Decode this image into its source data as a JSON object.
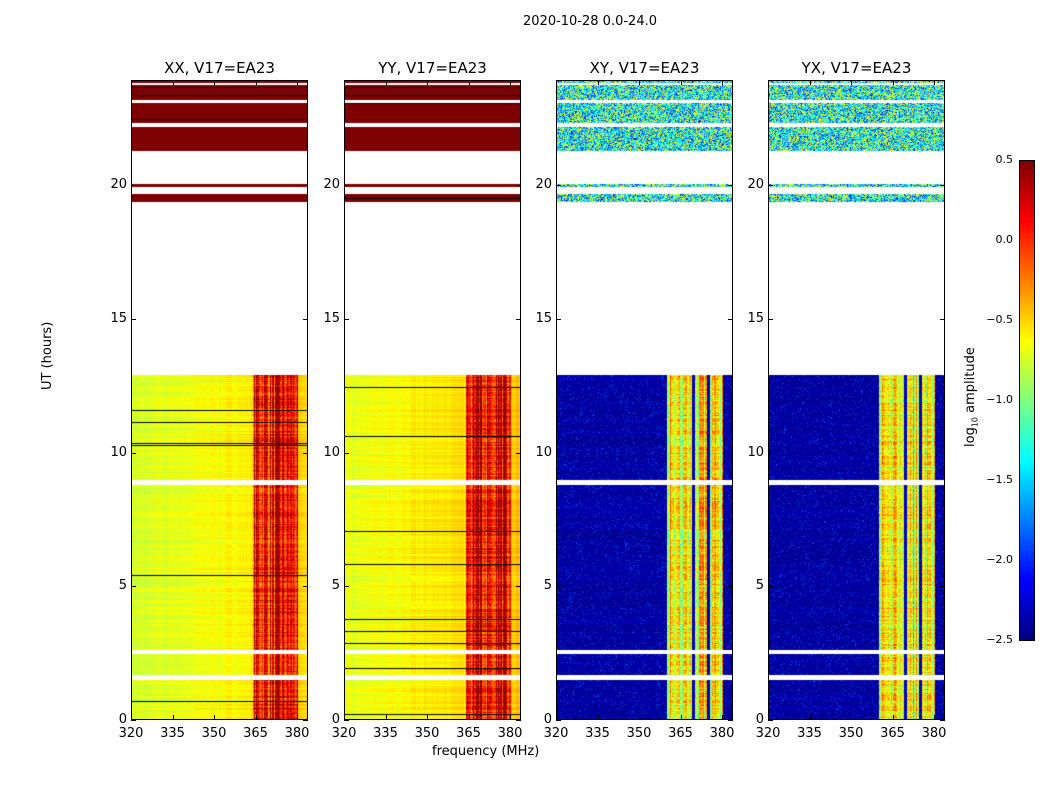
{
  "suptitle": "2020-10-28 0.0-24.0",
  "chart_data": {
    "type": "heatmap",
    "title": "2020-10-28 0.0-24.0",
    "xlabel": "frequency (MHz)",
    "ylabel": "UT (hours)",
    "xlim": [
      320,
      384
    ],
    "ylim": [
      0,
      24
    ],
    "xticks": [
      "320",
      "335",
      "350",
      "365",
      "380"
    ],
    "yticks": [
      "0",
      "5",
      "10",
      "15",
      "20"
    ],
    "colorbar": {
      "label": "log10 amplitude",
      "label_main": "log",
      "label_sub": "10",
      "label_rest": " amplitude",
      "range": [
        -2.5,
        0.5
      ],
      "ticks": [
        "0.5",
        "0.0",
        "−0.5",
        "−1.0",
        "−1.5",
        "−2.0",
        "−2.5"
      ],
      "colormap": "jet"
    },
    "panels": [
      {
        "title": "XX, V17=EA23",
        "kind": "parallel",
        "low_freq_level": -0.75,
        "high_band_mhz": [
          364,
          380
        ],
        "high_band_level": 0.1,
        "late_level": 0.5
      },
      {
        "title": "YY, V17=EA23",
        "kind": "parallel",
        "low_freq_level": -0.7,
        "high_band_mhz": [
          364,
          380
        ],
        "high_band_level": 0.15,
        "late_level": 0.5
      },
      {
        "title": "XY, V17=EA23",
        "kind": "cross",
        "low_freq_level": -2.4,
        "high_band_mhz": [
          360,
          380
        ],
        "high_band_level": -0.6,
        "late_level": -1.3
      },
      {
        "title": "YX, V17=EA23",
        "kind": "cross",
        "low_freq_level": -2.4,
        "high_band_mhz": [
          360,
          380
        ],
        "high_band_level": -0.6,
        "late_level": -1.3
      }
    ],
    "data_ranges_hours": [
      [
        0,
        12.9
      ],
      [
        19.4,
        24
      ]
    ],
    "flagged_ranges_hours": [
      [
        1.5,
        1.7
      ],
      [
        2.5,
        2.65
      ],
      [
        8.8,
        9.0
      ],
      [
        12.9,
        19.4
      ],
      [
        19.7,
        19.95
      ],
      [
        20.05,
        21.3
      ],
      [
        22.2,
        22.35
      ],
      [
        23.1,
        23.2
      ],
      [
        23.75,
        23.85
      ]
    ]
  }
}
